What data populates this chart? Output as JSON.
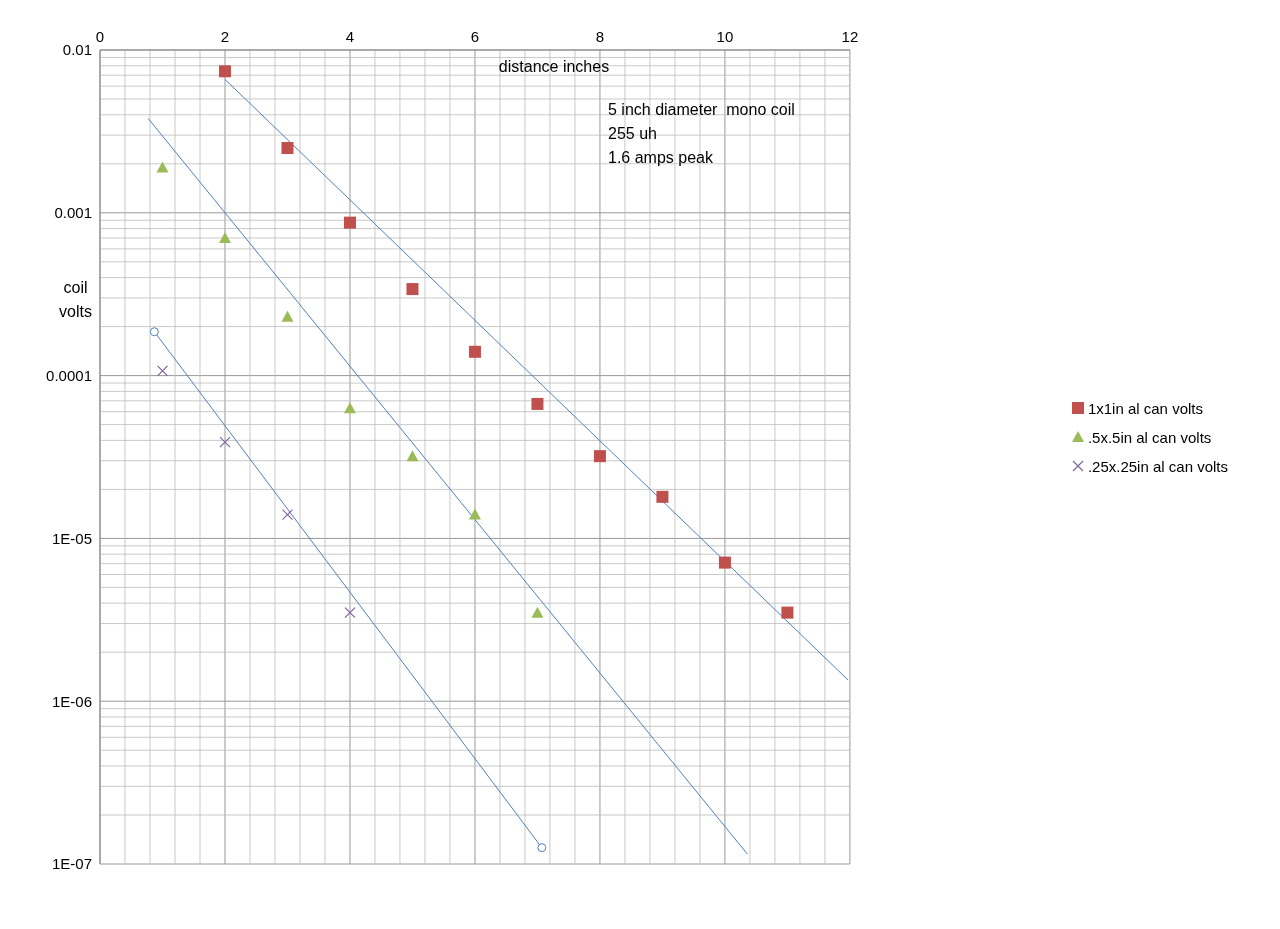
{
  "chart_data": {
    "type": "scatter",
    "xlabel": "distance inches",
    "ylabel": "coil volts",
    "annotations": [
      "5 inch diameter  mono coil",
      "255 uh",
      "1.6 amps peak"
    ],
    "xlim": [
      0,
      12
    ],
    "xticks": [
      0,
      2,
      4,
      6,
      8,
      10,
      12
    ],
    "ylim": [
      1e-07,
      0.01
    ],
    "yticks": [
      {
        "value": 0.01,
        "label": "0.01"
      },
      {
        "value": 0.001,
        "label": "0.001"
      },
      {
        "value": 0.0001,
        "label": "0.0001"
      },
      {
        "value": 1e-05,
        "label": "1E-05"
      },
      {
        "value": 1e-06,
        "label": "1E-06"
      },
      {
        "value": 1e-07,
        "label": "1E-07"
      }
    ],
    "log": "y",
    "grid": true,
    "legend": "right",
    "series": [
      {
        "name": "1x1in al can volts",
        "marker": "square",
        "color": "#c0504d",
        "x": [
          2,
          3,
          4,
          5,
          6,
          7,
          8,
          9,
          10,
          11
        ],
        "values": [
          0.0074,
          0.0025,
          0.00087,
          0.00034,
          0.00014,
          6.7e-05,
          3.2e-05,
          1.8e-05,
          7.1e-06,
          3.5e-06
        ]
      },
      {
        "name": ".5x.5in al can volts",
        "marker": "triangle",
        "color": "#9bbb59",
        "x": [
          1,
          2,
          3,
          4,
          5,
          6,
          7
        ],
        "values": [
          0.0019,
          0.0007,
          0.00023,
          6.3e-05,
          3.2e-05,
          1.4e-05,
          3.5e-06
        ]
      },
      {
        "name": ".25x.25in al can volts",
        "marker": "cross",
        "color": "#8064a2",
        "x": [
          1,
          2,
          3,
          4
        ],
        "values": [
          0.000107,
          3.9e-05,
          1.4e-05,
          3.5e-06
        ]
      },
      {
        "type": "line",
        "marker": "none",
        "color": "#4f81bd",
        "x": [
          2,
          11.97
        ],
        "values": [
          0.0066,
          1.35e-06
        ]
      },
      {
        "type": "line",
        "marker": "none",
        "color": "#4f81bd",
        "x": [
          0.77,
          10.36
        ],
        "values": [
          0.0038,
          1.15e-07
        ]
      },
      {
        "type": "line",
        "marker": "circle",
        "color": "#4f81bd",
        "x": [
          0.87,
          7.07
        ],
        "values": [
          0.000186,
          1.26e-07
        ]
      }
    ]
  }
}
